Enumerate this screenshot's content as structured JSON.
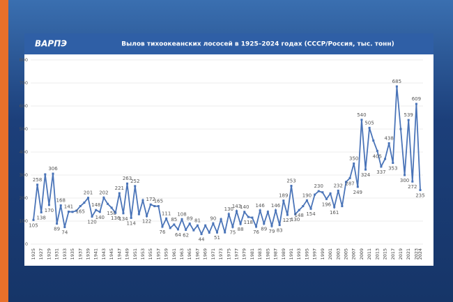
{
  "logo": "ВАРПЭ",
  "chart_data": {
    "type": "line",
    "title": "Вылов тихоокеанских лососей в 1925–2024 годах (СССР/Россия, тыс. тонн)",
    "categories": [
      "1925",
      null,
      "1927",
      null,
      "1929",
      null,
      "1931",
      null,
      "1933",
      null,
      "1935",
      null,
      "1937",
      null,
      "1939",
      null,
      "1941",
      null,
      "1943",
      null,
      "1945",
      null,
      "1947",
      null,
      "1949",
      null,
      "1951",
      null,
      "1953",
      null,
      "1955",
      null,
      "1957",
      null,
      "1959",
      null,
      "1961",
      null,
      "1963",
      null,
      "1965",
      null,
      "1967",
      null,
      "1969",
      null,
      "1971",
      null,
      "1973",
      null,
      "1975",
      null,
      "1977",
      null,
      "1979",
      null,
      "1981",
      null,
      "1983",
      null,
      "1985",
      null,
      "1987",
      null,
      "1989",
      null,
      "1991",
      null,
      "1993",
      null,
      "1995",
      null,
      "1997",
      null,
      "1999",
      null,
      "2001",
      null,
      "2003",
      null,
      "2005",
      null,
      "2007",
      null,
      "2009",
      null,
      "2011",
      null,
      "2013",
      null,
      "2015",
      null,
      "2017",
      null,
      "2019",
      null,
      "2021",
      null,
      "2023",
      "2024"
    ],
    "values": [
      105,
      258,
      138,
      303,
      170,
      306,
      89,
      168,
      74,
      141,
      140,
      145,
      165,
      180,
      201,
      120,
      148,
      140,
      202,
      175,
      158,
      136,
      221,
      134,
      263,
      114,
      252,
      130,
      190,
      122,
      172,
      165,
      165,
      76,
      111,
      70,
      85,
      64,
      108,
      62,
      89,
      60,
      81,
      44,
      81,
      50,
      90,
      51,
      108,
      51,
      130,
      75,
      143,
      88,
      140,
      118,
      115,
      76,
      146,
      89,
      140,
      79,
      146,
      83,
      189,
      127,
      253,
      130,
      148,
      165,
      190,
      154,
      215,
      230,
      225,
      196,
      220,
      161,
      232,
      165,
      270,
      287,
      350,
      249,
      540,
      324,
      505,
      450,
      405,
      337,
      370,
      438,
      353,
      685,
      500,
      300,
      539,
      272,
      609,
      235
    ],
    "value_labels": [
      "105",
      "258",
      "138",
      null,
      "170",
      "306",
      "89",
      "168",
      "74",
      "141",
      null,
      null,
      "165",
      null,
      "201",
      "120",
      "148",
      "140",
      "202",
      null,
      "158",
      "136",
      "221",
      "134",
      "263",
      "114",
      "252",
      null,
      null,
      "122",
      "172",
      null,
      "165",
      "76",
      "111",
      null,
      "85",
      "64",
      "108",
      "62",
      "89",
      null,
      "81",
      "44",
      null,
      null,
      "90",
      "51",
      null,
      null,
      "130",
      "75",
      "143",
      "88",
      "140",
      "118",
      null,
      "76",
      "146",
      "89",
      null,
      "79",
      "146",
      "83",
      "189",
      "127",
      "253",
      "130",
      "148",
      null,
      "190",
      "154",
      null,
      "230",
      null,
      "196",
      null,
      "161",
      "232",
      null,
      null,
      "287",
      "350",
      "249",
      "540",
      "324",
      "505",
      null,
      "405",
      "337",
      null,
      "438",
      "353",
      "685",
      null,
      "300",
      "539",
      "272",
      "609",
      "235"
    ],
    "color": "#4a74b8",
    "ylim": [
      0,
      800
    ],
    "yticks": [
      0,
      100,
      200,
      300,
      400,
      500,
      600,
      700,
      800
    ],
    "grid": true
  }
}
